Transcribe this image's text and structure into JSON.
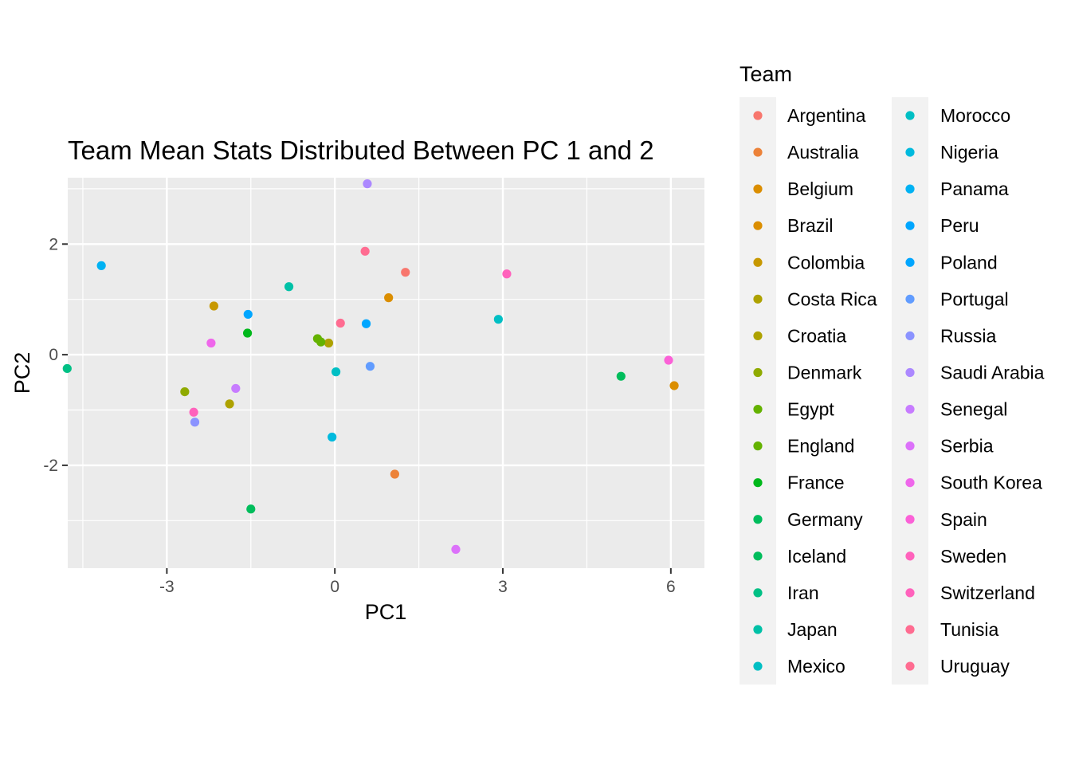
{
  "chart_data": {
    "type": "scatter",
    "title": "Team Mean Stats Distributed Between PC 1 and 2",
    "xlabel": "PC1",
    "ylabel": "PC2",
    "xlim": [
      -4.77,
      6.6
    ],
    "ylim": [
      -3.86,
      3.2
    ],
    "x_ticks": [
      -3,
      0,
      3,
      6
    ],
    "y_ticks": [
      -2,
      0,
      2
    ],
    "x_tick_labels": [
      "-3",
      "0",
      "3",
      "6"
    ],
    "y_tick_labels": [
      "-2",
      "0",
      "2"
    ],
    "grid": true,
    "background": "#ebebeb",
    "legend_title": "Team",
    "legend_position": "right",
    "teams": [
      {
        "name": "Argentina",
        "color": "#F8766D",
        "x": 1.26,
        "y": 1.49
      },
      {
        "name": "Australia",
        "color": "#EC8239",
        "x": 1.07,
        "y": -2.16
      },
      {
        "name": "Belgium",
        "color": "#DB8E00",
        "x": 0.96,
        "y": 1.03
      },
      {
        "name": "Brazil",
        "color": "#DB8E00",
        "x": 6.06,
        "y": -0.56
      },
      {
        "name": "Colombia",
        "color": "#C79800",
        "x": -2.16,
        "y": 0.88
      },
      {
        "name": "Costa Rica",
        "color": "#AEA200",
        "x": -1.88,
        "y": -0.89
      },
      {
        "name": "Croatia",
        "color": "#AEA200",
        "x": -0.11,
        "y": 0.21
      },
      {
        "name": "Denmark",
        "color": "#8FAA00",
        "x": -2.68,
        "y": -0.67
      },
      {
        "name": "Egypt",
        "color": "#64B200",
        "x": -0.31,
        "y": 0.29
      },
      {
        "name": "England",
        "color": "#64B200",
        "x": -0.25,
        "y": 0.23
      },
      {
        "name": "France",
        "color": "#00B81B",
        "x": -1.56,
        "y": 0.39
      },
      {
        "name": "Germany",
        "color": "#00BD5C",
        "x": 5.11,
        "y": -0.39
      },
      {
        "name": "Iceland",
        "color": "#00BD5C",
        "x": -1.5,
        "y": -2.79
      },
      {
        "name": "Iran",
        "color": "#00C085",
        "x": -4.78,
        "y": -0.25
      },
      {
        "name": "Japan",
        "color": "#00C1A7",
        "x": -0.82,
        "y": 1.23
      },
      {
        "name": "Mexico",
        "color": "#00BFC4",
        "x": 2.92,
        "y": 0.64
      },
      {
        "name": "Morocco",
        "color": "#00BFC4",
        "x": 0.02,
        "y": -0.31
      },
      {
        "name": "Nigeria",
        "color": "#00BADE",
        "x": -0.05,
        "y": -1.49
      },
      {
        "name": "Panama",
        "color": "#00B2F3",
        "x": -4.17,
        "y": 1.61
      },
      {
        "name": "Peru",
        "color": "#00A6FF",
        "x": 0.56,
        "y": 0.56
      },
      {
        "name": "Poland",
        "color": "#00A6FF",
        "x": -1.55,
        "y": 0.73
      },
      {
        "name": "Portugal",
        "color": "#619CFF",
        "x": 0.63,
        "y": -0.21
      },
      {
        "name": "Russia",
        "color": "#8B93FF",
        "x": -2.5,
        "y": -1.22
      },
      {
        "name": "Saudi Arabia",
        "color": "#AC88FF",
        "x": 0.58,
        "y": 3.09
      },
      {
        "name": "Senegal",
        "color": "#C77CFF",
        "x": -1.77,
        "y": -0.61
      },
      {
        "name": "Serbia",
        "color": "#DC71FA",
        "x": 2.16,
        "y": -3.52
      },
      {
        "name": "South Korea",
        "color": "#EF67EB",
        "x": -2.21,
        "y": 0.21
      },
      {
        "name": "Spain",
        "color": "#FB61D7",
        "x": 5.96,
        "y": -0.1
      },
      {
        "name": "Sweden",
        "color": "#FF62BC",
        "x": 3.07,
        "y": 1.46
      },
      {
        "name": "Switzerland",
        "color": "#FF62BC",
        "x": -2.52,
        "y": -1.04
      },
      {
        "name": "Tunisia",
        "color": "#FF6C91",
        "x": 0.1,
        "y": 0.57
      },
      {
        "name": "Uruguay",
        "color": "#FF6C91",
        "x": 0.54,
        "y": 1.87
      }
    ]
  }
}
